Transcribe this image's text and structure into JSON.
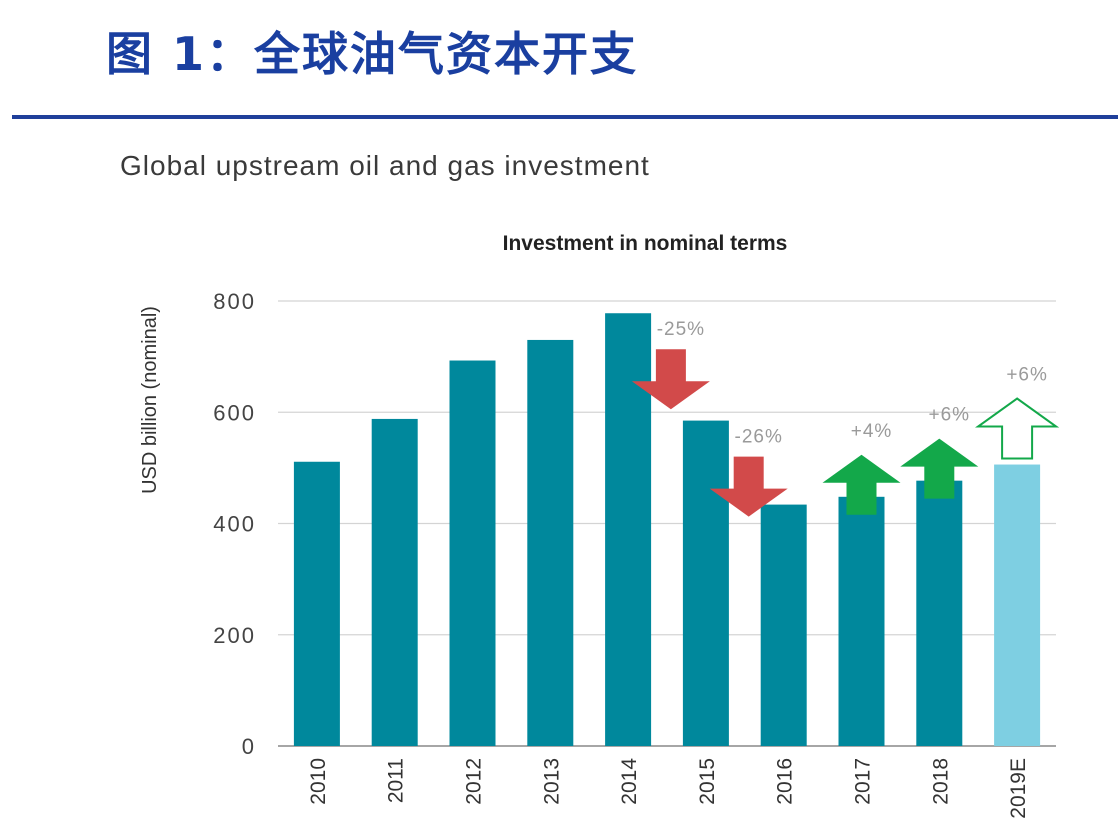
{
  "header": {
    "figure_title": "图 1：全球油气资本开支",
    "subtitle": "Global upstream oil and gas investment"
  },
  "colors": {
    "title_blue": "#1a3fa0",
    "bar": "#00889c",
    "bar_estimate": "#7ecfe2",
    "arrow_down": "#d24a4a",
    "arrow_up": "#13a84a",
    "label_grey": "#9a9a9a"
  },
  "chart_data": {
    "type": "bar",
    "title": "Investment in nominal terms",
    "ylabel": "USD billion (nominal)",
    "xlabel": "",
    "ylim": [
      0,
      800
    ],
    "yticks": [
      0,
      200,
      400,
      600,
      800
    ],
    "grid": true,
    "categories": [
      "2010",
      "2011",
      "2012",
      "2013",
      "2014",
      "2015",
      "2016",
      "2017",
      "2018",
      "2019E"
    ],
    "values": [
      511,
      588,
      693,
      730,
      778,
      585,
      434,
      448,
      477,
      506
    ],
    "estimate_categories": [
      "2019E"
    ],
    "annotations": [
      {
        "category": "2015",
        "label": "-25%",
        "direction": "down",
        "style": "filled"
      },
      {
        "category": "2016",
        "label": "-26%",
        "direction": "down",
        "style": "filled"
      },
      {
        "category": "2017",
        "label": "+4%",
        "direction": "up",
        "style": "filled"
      },
      {
        "category": "2018",
        "label": "+6%",
        "direction": "up",
        "style": "filled"
      },
      {
        "category": "2019E",
        "label": "+6%",
        "direction": "up",
        "style": "outline"
      }
    ]
  }
}
